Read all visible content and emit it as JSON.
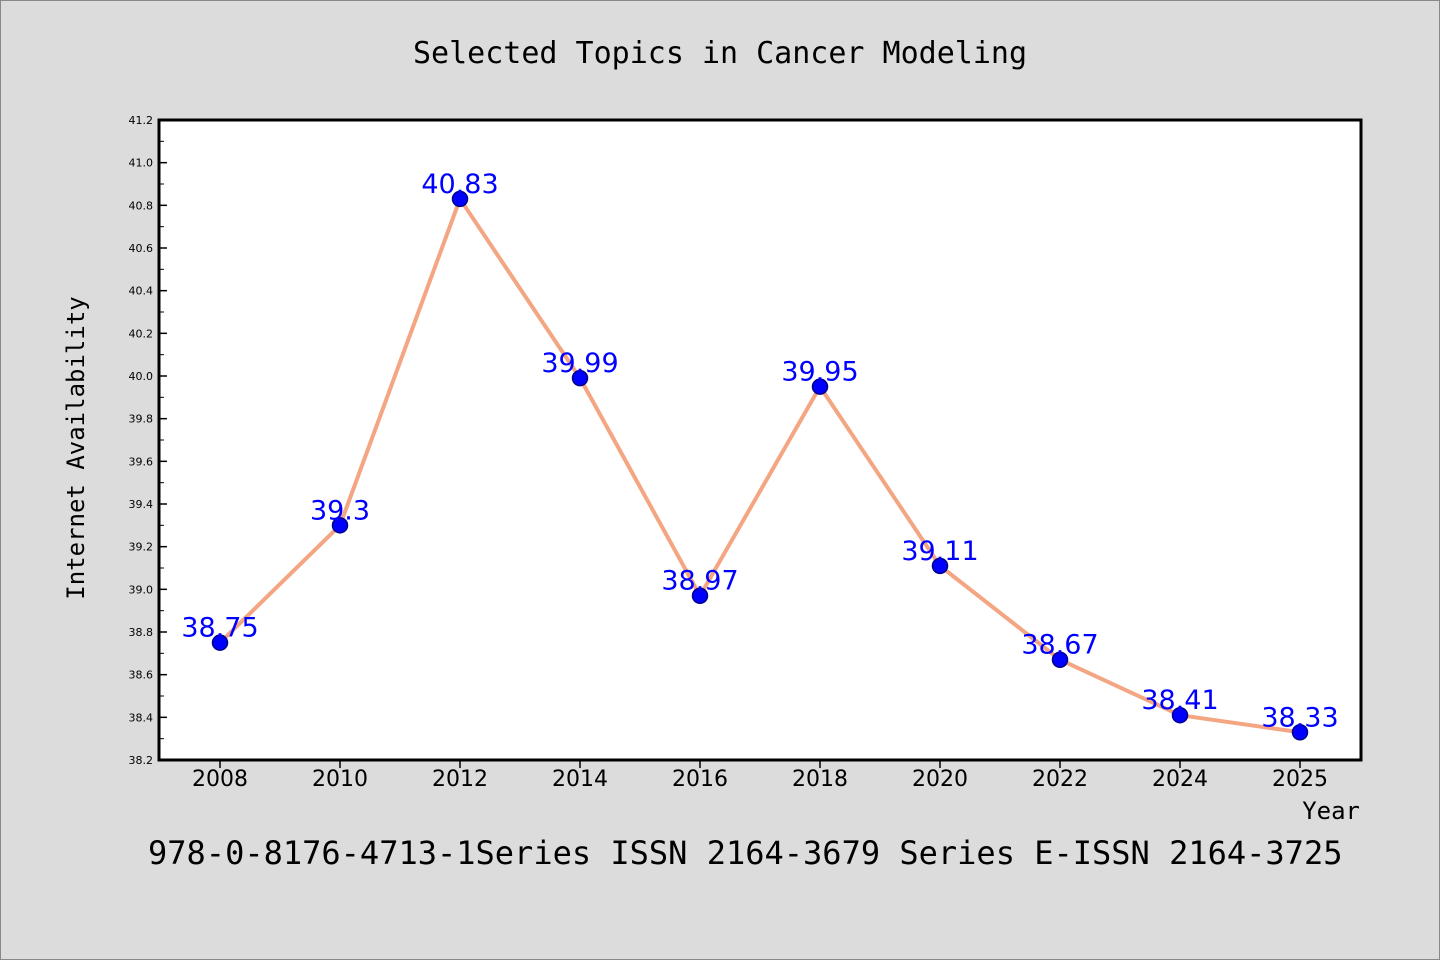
{
  "page": {
    "caption": "978-0-8176-4713-1Series ISSN 2164-3679 Series E-ISSN 2164-3725"
  },
  "chart_data": {
    "type": "line",
    "title": "Selected Topics in Cancer Modeling",
    "xlabel": "Year",
    "ylabel": "Internet Availability",
    "x": [
      "2008",
      "2010",
      "2012",
      "2014",
      "2016",
      "2018",
      "2020",
      "2022",
      "2024",
      "2025"
    ],
    "series": [
      {
        "values": [
          38.75,
          39.3,
          40.83,
          39.99,
          38.97,
          39.95,
          39.11,
          38.67,
          38.41,
          38.33
        ],
        "labels": [
          "38.75",
          "39.3",
          "40.83",
          "39.99",
          "38.97",
          "39.95",
          "39.11",
          "38.67",
          "38.41",
          "38.33"
        ]
      }
    ],
    "ylim": [
      38.2,
      41.2
    ],
    "yticks": [
      "38.2",
      "38.4",
      "38.6",
      "38.8",
      "39.0",
      "39.2",
      "39.4",
      "39.6",
      "39.8",
      "40.0",
      "40.2",
      "40.4",
      "40.6",
      "40.8",
      "41.0",
      "41.2"
    ],
    "grid": false,
    "legend": "none",
    "colors": {
      "line": "#f4a582",
      "marker": "#0000ff",
      "marker_edge": "#00008b",
      "data_label": "#0000ff",
      "plot_bg": "#ffffff",
      "figure_bg": "#dcdcdc"
    }
  }
}
